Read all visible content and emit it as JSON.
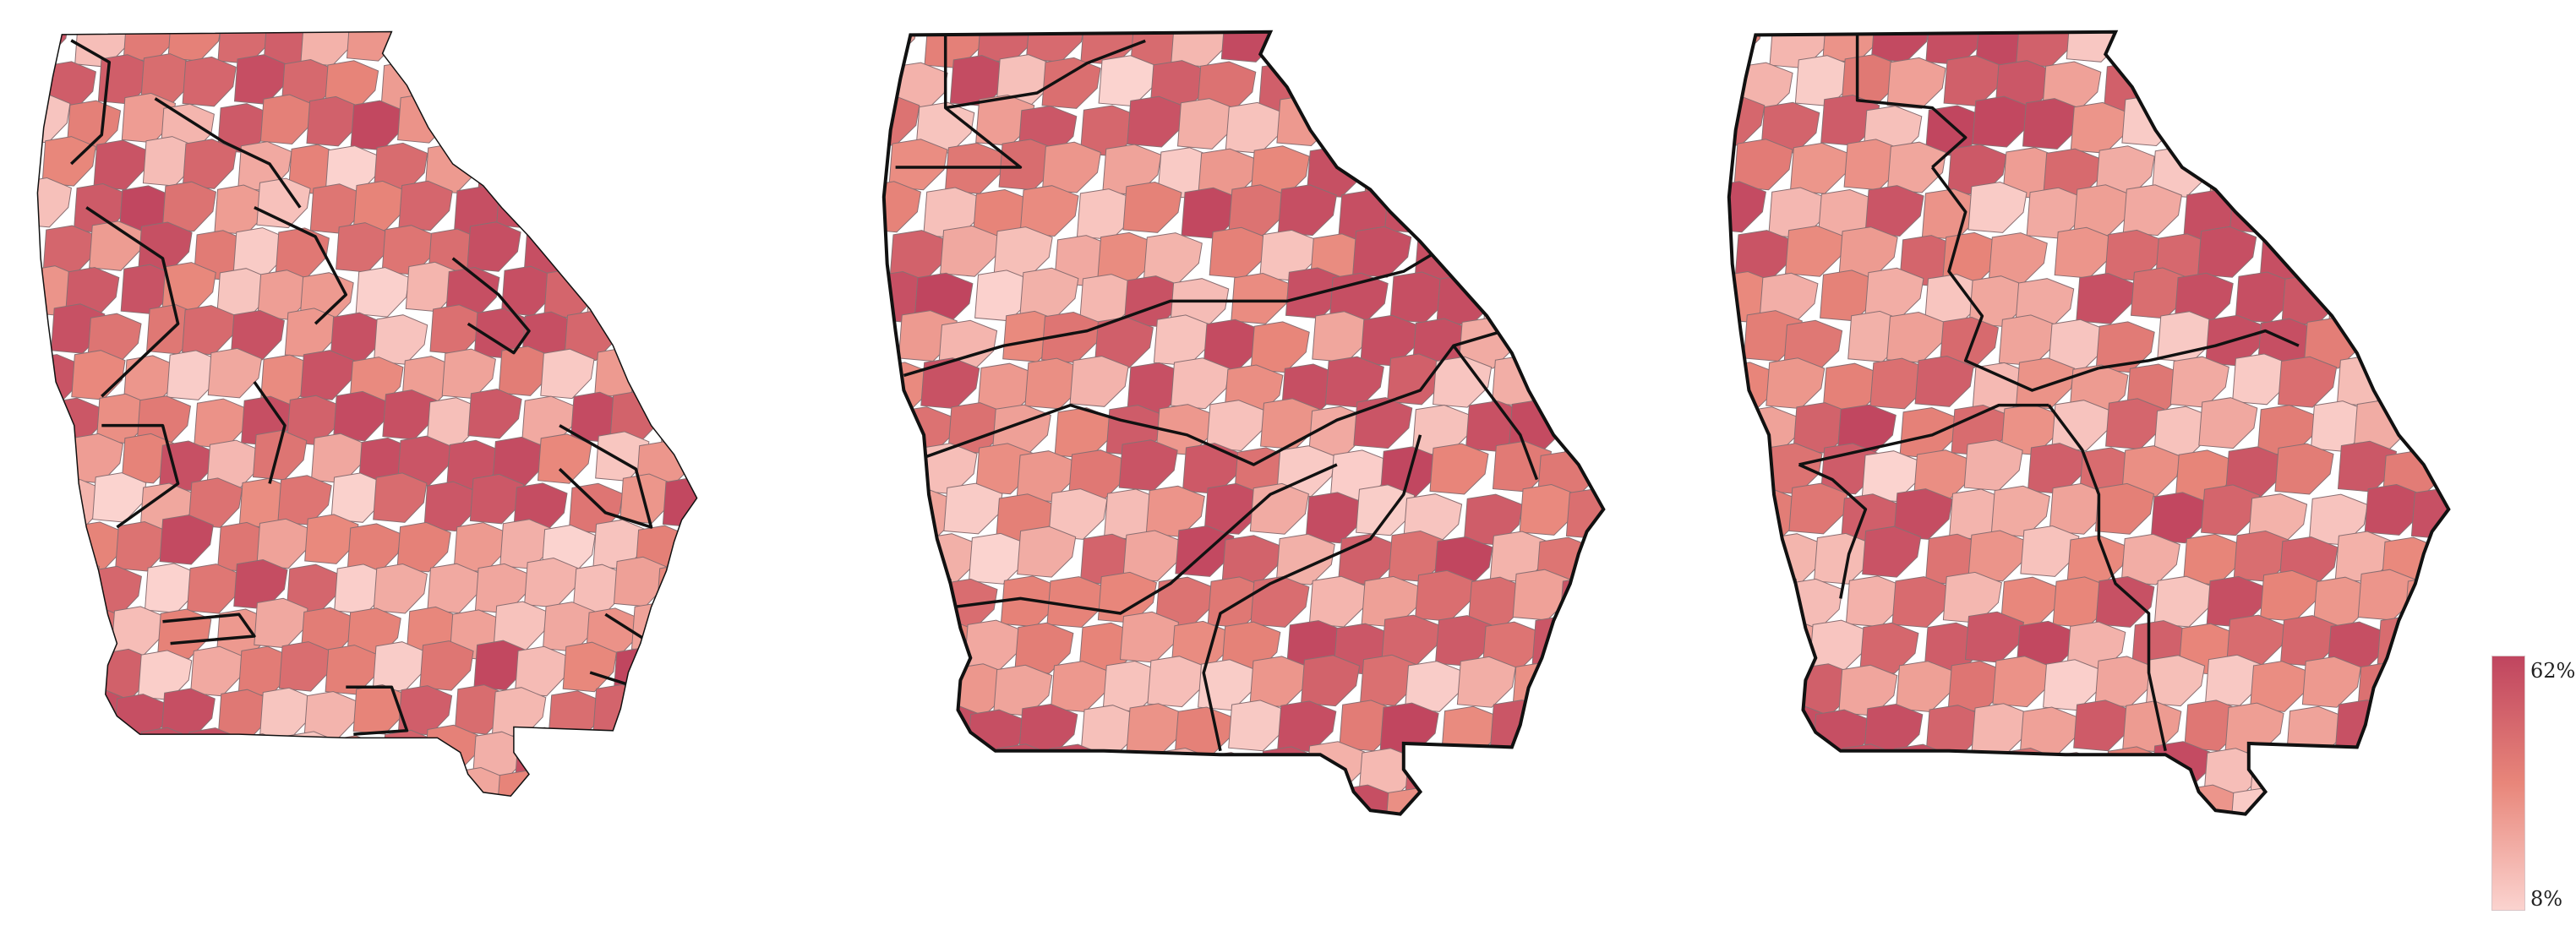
{
  "legend": {
    "max_label": "62%",
    "min_label": "8%",
    "max_value": 62,
    "min_value": 8,
    "color_high": "#c0455f",
    "color_mid": "#e8867a",
    "color_low": "#fbd3cf"
  },
  "maps": [
    {
      "name": "georgia-county-map-left"
    },
    {
      "name": "georgia-county-map-middle"
    },
    {
      "name": "georgia-county-map-right"
    }
  ],
  "colors": {
    "county_border": "#8a6f72",
    "district_border": "#111111",
    "background": "#ffffff"
  }
}
